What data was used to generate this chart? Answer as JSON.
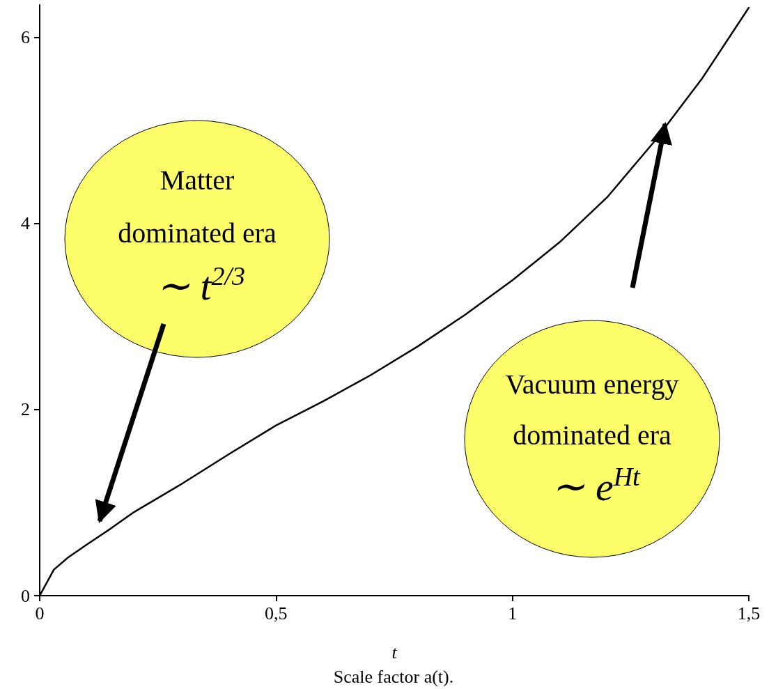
{
  "chart_data": {
    "type": "line",
    "xlabel": "t",
    "x": [
      0,
      0.03,
      0.06,
      0.1,
      0.15,
      0.2,
      0.3,
      0.4,
      0.5,
      0.6,
      0.7,
      0.8,
      0.9,
      1.0,
      1.1,
      1.2,
      1.3,
      1.4,
      1.5
    ],
    "series": [
      {
        "color": "#000000",
        "values": [
          0,
          0.28,
          0.41,
          0.55,
          0.72,
          0.9,
          1.2,
          1.52,
          1.83,
          2.09,
          2.37,
          2.68,
          3.02,
          3.39,
          3.8,
          4.28,
          4.88,
          5.55,
          6.32
        ]
      }
    ],
    "xlim": [
      0,
      1.5
    ],
    "ylim": [
      0,
      6.35
    ],
    "xticks": [
      0,
      {
        "value": 0.5,
        "label": "0,5"
      },
      1,
      {
        "value": 1.5,
        "label": "1,5"
      }
    ],
    "yticks": [
      0,
      2,
      4,
      6
    ],
    "grid": false,
    "marker": "none",
    "line_style": "solid",
    "annotations": [
      "Matter\ndominated era\n∼ t$^{2/3}$",
      "Vacuum energy\ndominated era\n∼ e$^{Ht}$",
      "Scale factor a(t)."
    ]
  }
}
